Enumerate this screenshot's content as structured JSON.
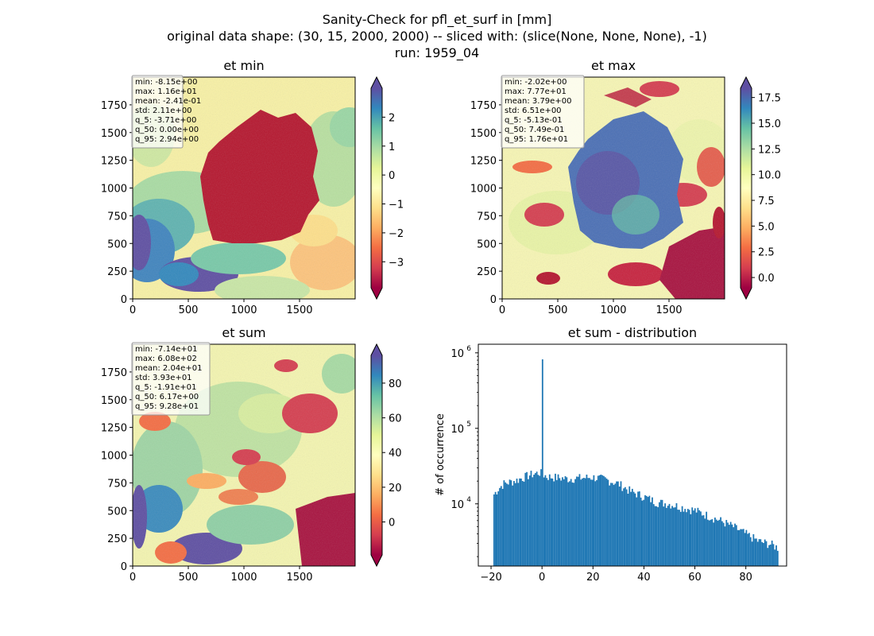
{
  "figure": {
    "title_lines": [
      "Sanity-Check for pfl_et_surf in [mm]",
      "original data shape: (30, 15, 2000, 2000) -- sliced with: (slice(None, None, None), -1)",
      "run: 1959_04"
    ]
  },
  "chart_data": [
    {
      "type": "heatmap",
      "title": "et min",
      "xlim": [
        0,
        2000
      ],
      "ylim": [
        0,
        2000
      ],
      "xticks": [
        0,
        500,
        1000,
        1500
      ],
      "yticks": [
        0,
        250,
        500,
        750,
        1000,
        1250,
        1500,
        1750
      ],
      "colormap": "Spectral",
      "colorbar": {
        "range": [
          -3.9,
          3.0
        ],
        "ticks": [
          2,
          1,
          0,
          -1,
          -2,
          -3
        ],
        "ticklabels": [
          "2",
          "1",
          "0",
          "−1",
          "−2",
          "−3"
        ],
        "extend": "both"
      },
      "stats": [
        "min: -8.15e+00",
        "max: 1.16e+01",
        "mean: -2.41e-01",
        "std: 2.11e+00",
        "q_5: -3.71e+00",
        "q_50: 0.00e+00",
        "q_95: 2.94e+00"
      ]
    },
    {
      "type": "heatmap",
      "title": "et max",
      "xlim": [
        0,
        2000
      ],
      "ylim": [
        0,
        2000
      ],
      "xticks": [
        0,
        500,
        1000,
        1500
      ],
      "yticks": [
        0,
        250,
        500,
        750,
        1000,
        1250,
        1500,
        1750
      ],
      "colormap": "Spectral",
      "colorbar": {
        "range": [
          -1.0,
          18.4
        ],
        "ticks": [
          17.5,
          15.0,
          12.5,
          10.0,
          7.5,
          5.0,
          2.5,
          0.0
        ],
        "ticklabels": [
          "17.5",
          "15.0",
          "12.5",
          "10.0",
          "7.5",
          "5.0",
          "2.5",
          "0.0"
        ],
        "extend": "both"
      },
      "stats": [
        "min: -2.02e+00",
        "max: 7.77e+01",
        "mean: 3.79e+00",
        "std: 6.51e+00",
        "q_5: -5.13e-01",
        "q_50: 7.49e-01",
        "q_95: 1.76e+01"
      ]
    },
    {
      "type": "heatmap",
      "title": "et sum",
      "xlim": [
        0,
        2000
      ],
      "ylim": [
        0,
        2000
      ],
      "xticks": [
        0,
        500,
        1000,
        1500
      ],
      "yticks": [
        0,
        250,
        500,
        750,
        1000,
        1250,
        1500,
        1750
      ],
      "colormap": "Spectral",
      "colorbar": {
        "range": [
          -19,
          96
        ],
        "ticks": [
          80,
          60,
          40,
          20,
          0
        ],
        "ticklabels": [
          "80",
          "60",
          "40",
          "20",
          "0"
        ],
        "extend": "both"
      },
      "stats": [
        "min: -7.14e+01",
        "max: 6.08e+02",
        "mean: 2.04e+01",
        "std: 3.93e+01",
        "q_5: -1.91e+01",
        "q_50: 6.17e+00",
        "q_95: 9.28e+01"
      ]
    },
    {
      "type": "bar",
      "title": "et sum - distribution",
      "ylabel": "# of occurrence",
      "yscale": "log",
      "xlim": [
        -25,
        96
      ],
      "ylim": [
        1500,
        1300000
      ],
      "xticks": [
        -20,
        0,
        20,
        40,
        60,
        80
      ],
      "xticklabels": [
        "−20",
        "0",
        "20",
        "40",
        "60",
        "80"
      ],
      "yticks": [
        10000,
        100000,
        1000000
      ],
      "yticklabels": [
        "10^4",
        "10^5",
        "10^6"
      ],
      "bar_color": "#1f77b4",
      "bin_range": [
        -19.1,
        92.8
      ],
      "spike": {
        "x": 0,
        "count": 820000
      },
      "envelope": [
        [
          -19.1,
          13000
        ],
        [
          -17,
          16000
        ],
        [
          -15,
          18500
        ],
        [
          -10,
          20500
        ],
        [
          -5,
          24000
        ],
        [
          -1,
          26000
        ],
        [
          2,
          23000
        ],
        [
          10,
          21500
        ],
        [
          15,
          22000
        ],
        [
          20,
          22500
        ],
        [
          25,
          21000
        ],
        [
          30,
          18500
        ],
        [
          35,
          14500
        ],
        [
          40,
          12500
        ],
        [
          45,
          10500
        ],
        [
          50,
          10000
        ],
        [
          55,
          9000
        ],
        [
          60,
          8200
        ],
        [
          65,
          7000
        ],
        [
          70,
          6000
        ],
        [
          75,
          5000
        ],
        [
          80,
          4000
        ],
        [
          85,
          3200
        ],
        [
          90,
          2900
        ],
        [
          92.8,
          2600
        ]
      ]
    }
  ]
}
